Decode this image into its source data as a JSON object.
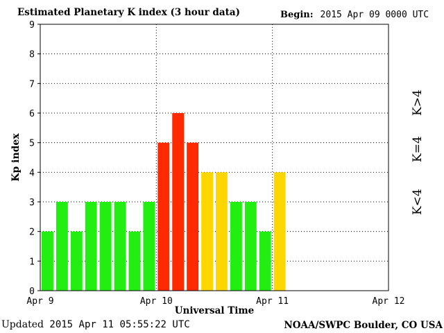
{
  "header": {
    "title": "Estimated Planetary K index (3 hour data)",
    "begin_label": "Begin:",
    "begin_value": "2015 Apr 09 0000 UTC"
  },
  "footer": {
    "updated_label": "Updated",
    "updated_value": "2015 Apr 11 05:55:22 UTC",
    "source": "NOAA/SWPC Boulder, CO USA"
  },
  "colors": {
    "below4": "#22ee11",
    "equal4": "#ffd700",
    "above4": "#ff2a00"
  },
  "legend": {
    "below": "K<4",
    "equal": "K=4",
    "above": "K>4"
  },
  "chart_data": {
    "type": "bar",
    "title": "Estimated Planetary K index (3 hour data)",
    "xlabel": "Universal Time",
    "ylabel": "Kp index",
    "ylim": [
      0,
      9
    ],
    "yticks": [
      "0",
      "1",
      "2",
      "3",
      "4",
      "5",
      "6",
      "7",
      "8",
      "9"
    ],
    "xtick_labels": [
      "Apr 9",
      "Apr 10",
      "Apr 11",
      "Apr 12"
    ],
    "x_days": 3,
    "bins_per_day": 8,
    "grid": true,
    "values": [
      2,
      3,
      2,
      3,
      3,
      3,
      2,
      3,
      5,
      6,
      5,
      4,
      4,
      3,
      3,
      2,
      4
    ]
  }
}
